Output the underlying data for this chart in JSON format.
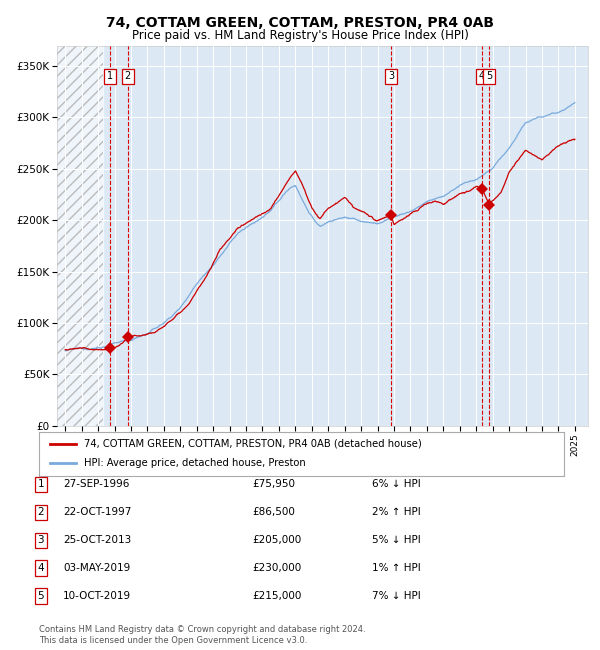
{
  "title": "74, COTTAM GREEN, COTTAM, PRESTON, PR4 0AB",
  "subtitle": "Price paid vs. HM Land Registry's House Price Index (HPI)",
  "title_fontsize": 10,
  "subtitle_fontsize": 8.5,
  "ylabel_ticks": [
    "£0",
    "£50K",
    "£100K",
    "£150K",
    "£200K",
    "£250K",
    "£300K",
    "£350K"
  ],
  "ytick_values": [
    0,
    50000,
    100000,
    150000,
    200000,
    250000,
    300000,
    350000
  ],
  "ylim": [
    0,
    370000
  ],
  "xlim_start": 1993.5,
  "xlim_end": 2025.8,
  "background_color": "#ffffff",
  "chart_bg_color": "#dce9f5",
  "hatch_region_end": 1996.3,
  "sale_dates": [
    1996.74,
    1997.81,
    2013.81,
    2019.33,
    2019.78
  ],
  "sale_prices": [
    75950,
    86500,
    205000,
    230000,
    215000
  ],
  "sale_labels": [
    "1",
    "2",
    "3",
    "4",
    "5"
  ],
  "vline_dates": [
    1996.74,
    1997.81,
    2013.81,
    2019.33,
    2019.78
  ],
  "vline_color": "#dd0000",
  "sale_marker_color": "#cc0000",
  "red_line_color": "#cc0000",
  "blue_line_color": "#7aaadd",
  "legend_red_label": "74, COTTAM GREEN, COTTAM, PRESTON, PR4 0AB (detached house)",
  "legend_blue_label": "HPI: Average price, detached house, Preston",
  "table_rows": [
    [
      "1",
      "27-SEP-1996",
      "£75,950",
      "6% ↓ HPI"
    ],
    [
      "2",
      "22-OCT-1997",
      "£86,500",
      "2% ↑ HPI"
    ],
    [
      "3",
      "25-OCT-2013",
      "£205,000",
      "5% ↓ HPI"
    ],
    [
      "4",
      "03-MAY-2019",
      "£230,000",
      "1% ↑ HPI"
    ],
    [
      "5",
      "10-OCT-2019",
      "£215,000",
      "7% ↓ HPI"
    ]
  ],
  "footer_text": "Contains HM Land Registry data © Crown copyright and database right 2024.\nThis data is licensed under the Open Government Licence v3.0.",
  "grid_color": "#ffffff"
}
